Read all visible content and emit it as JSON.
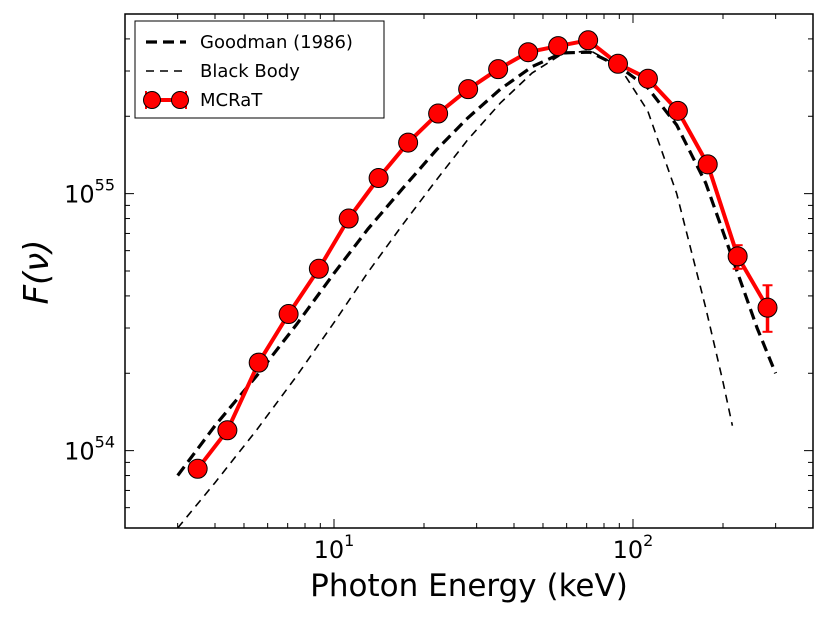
{
  "chart_data": {
    "type": "line",
    "title": "",
    "xlabel": "Photon Energy (keV)",
    "ylabel": "F(ν)",
    "xscale": "log",
    "yscale": "log",
    "xlim": [
      2,
      400
    ],
    "ylim": [
      5e+53,
      5e+55
    ],
    "x_ticks": [
      {
        "value": 10,
        "base": "10",
        "exp": "1"
      },
      {
        "value": 100,
        "base": "10",
        "exp": "2"
      }
    ],
    "y_ticks": [
      {
        "value": 1e+54,
        "base": "10",
        "exp": "54"
      },
      {
        "value": 1e+55,
        "base": "10",
        "exp": "55"
      }
    ],
    "legend_position": "top-left",
    "series": [
      {
        "name": "Goodman (1986)",
        "style": "thick-dashed",
        "color": "#000000",
        "x": [
          3.0,
          4.0,
          5.5,
          7.5,
          10,
          13,
          17,
          22,
          28,
          36,
          46,
          58,
          72,
          90,
          112,
          140,
          175,
          220,
          260,
          300
        ],
        "y": [
          8e+53,
          1.25e+54,
          1.95e+54,
          3.1e+54,
          4.9e+54,
          7.3e+54,
          1.05e+55,
          1.48e+55,
          1.97e+55,
          2.55e+55,
          3.12e+55,
          3.53e+55,
          3.55e+55,
          3.12e+55,
          2.58e+55,
          1.85e+55,
          1.1e+55,
          5.2e+54,
          3e+54,
          2e+54
        ]
      },
      {
        "name": "Black Body",
        "style": "thin-dashed",
        "color": "#000000",
        "x": [
          3.0,
          4.0,
          5.5,
          7.5,
          10,
          13,
          17,
          22,
          28,
          36,
          46,
          58,
          72,
          90,
          112,
          140,
          175,
          200,
          215
        ],
        "y": [
          5e+53,
          7.5e+53,
          1.2e+54,
          1.95e+54,
          3.15e+54,
          4.95e+54,
          7.6e+54,
          1.13e+55,
          1.62e+55,
          2.25e+55,
          2.95e+55,
          3.5e+55,
          3.6e+55,
          3.12e+55,
          2.1e+55,
          1e+55,
          3.6e+54,
          1.85e+54,
          1.25e+54
        ]
      },
      {
        "name": "MCRaT",
        "style": "line-markers-errorbars",
        "color": "#ff0000",
        "x": [
          3.5,
          4.4,
          5.6,
          7.05,
          8.9,
          11.2,
          14.1,
          17.7,
          22.3,
          28.1,
          35.4,
          44.6,
          56.2,
          70.8,
          89.1,
          112.2,
          141.3,
          177.8,
          223.9,
          281.8
        ],
        "y": [
          8.5e+53,
          1.2e+54,
          2.2e+54,
          3.4e+54,
          5.1e+54,
          8e+54,
          1.15e+55,
          1.58e+55,
          2.05e+55,
          2.55e+55,
          3.05e+55,
          3.55e+55,
          3.75e+55,
          3.95e+55,
          3.2e+55,
          2.8e+55,
          2.1e+55,
          1.3e+55,
          5.7e+54,
          3.6e+54
        ],
        "yerr_low": [
          0,
          0,
          0,
          0,
          0,
          0,
          0,
          0,
          0,
          0,
          0,
          0,
          0,
          0,
          0,
          0,
          0,
          0,
          6e+53,
          7e+53
        ],
        "yerr_high": [
          0,
          0,
          0,
          0,
          0,
          0,
          0,
          0,
          0,
          0,
          0,
          0,
          0,
          0,
          0,
          0,
          0,
          0,
          6e+53,
          8e+53
        ]
      }
    ]
  }
}
